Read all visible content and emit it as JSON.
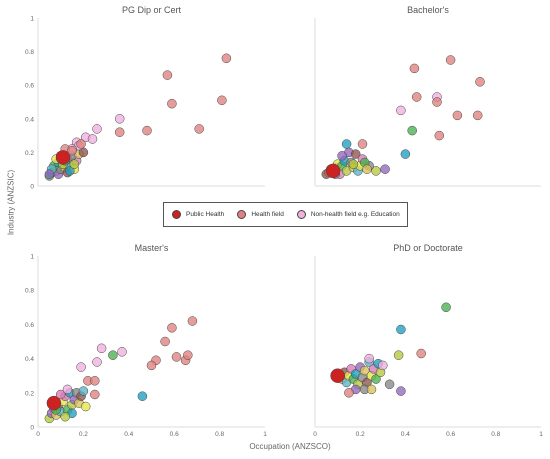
{
  "y_axis_label": "Industry (ANZSIC)",
  "x_axis_label": "Occupation (ANZSCO)",
  "legend": [
    {
      "label": "Public Health",
      "color": "#cc2222"
    },
    {
      "label": "Health field",
      "color": "#e08080"
    },
    {
      "label": "Non-health field e.g. Education",
      "color": "#f0b0e0"
    }
  ],
  "palette": [
    "#4caf50",
    "#1f9fbf",
    "#b5c83a",
    "#9467bd",
    "#888888",
    "#d9c25a",
    "#8c564b",
    "#5ab4c8",
    "#e6e64a",
    "#d87bb8"
  ],
  "chart_data": [
    {
      "type": "scatter",
      "title": "PG Dip or Cert",
      "xlim": [
        0,
        1
      ],
      "ylim": [
        0,
        1
      ],
      "yticks": [
        "0",
        "0.2",
        "0.4",
        "0.6",
        "0.8",
        "1"
      ],
      "xticks": [],
      "series": [
        {
          "name": "Public Health",
          "points": [
            [
              0.11,
              0.17
            ]
          ]
        },
        {
          "name": "Health field",
          "points": [
            [
              0.57,
              0.66
            ],
            [
              0.83,
              0.76
            ],
            [
              0.59,
              0.49
            ],
            [
              0.81,
              0.51
            ],
            [
              0.36,
              0.32
            ],
            [
              0.48,
              0.33
            ],
            [
              0.71,
              0.34
            ],
            [
              0.12,
              0.22
            ],
            [
              0.15,
              0.21
            ],
            [
              0.19,
              0.25
            ]
          ]
        },
        {
          "name": "Non-health field e.g. Education",
          "points": [
            [
              0.36,
              0.4
            ],
            [
              0.26,
              0.34
            ],
            [
              0.21,
              0.29
            ],
            [
              0.24,
              0.28
            ],
            [
              0.17,
              0.26
            ],
            [
              0.18,
              0.24
            ],
            [
              0.15,
              0.22
            ]
          ]
        },
        {
          "name": "",
          "points": [
            [
              0.05,
              0.06
            ],
            [
              0.06,
              0.08
            ],
            [
              0.08,
              0.09
            ],
            [
              0.09,
              0.07
            ],
            [
              0.1,
              0.1
            ],
            [
              0.12,
              0.11
            ],
            [
              0.13,
              0.08
            ],
            [
              0.14,
              0.12
            ],
            [
              0.16,
              0.1
            ],
            [
              0.17,
              0.15
            ],
            [
              0.07,
              0.12
            ],
            [
              0.09,
              0.14
            ],
            [
              0.11,
              0.13
            ],
            [
              0.13,
              0.16
            ],
            [
              0.15,
              0.18
            ],
            [
              0.18,
              0.19
            ],
            [
              0.2,
              0.2
            ],
            [
              0.06,
              0.1
            ],
            [
              0.08,
              0.16
            ],
            [
              0.1,
              0.18
            ],
            [
              0.12,
              0.15
            ],
            [
              0.14,
              0.09
            ],
            [
              0.16,
              0.13
            ],
            [
              0.05,
              0.07
            ]
          ]
        }
      ]
    },
    {
      "type": "scatter",
      "title": "Bachelor's",
      "xlim": [
        0,
        1
      ],
      "ylim": [
        0,
        1
      ],
      "yticks": [],
      "xticks": [],
      "series": [
        {
          "name": "Public Health",
          "points": [
            [
              0.08,
              0.09
            ]
          ]
        },
        {
          "name": "Health field",
          "points": [
            [
              0.44,
              0.7
            ],
            [
              0.6,
              0.75
            ],
            [
              0.54,
              0.5
            ],
            [
              0.73,
              0.62
            ],
            [
              0.45,
              0.53
            ],
            [
              0.63,
              0.42
            ],
            [
              0.72,
              0.42
            ],
            [
              0.55,
              0.3
            ],
            [
              0.21,
              0.25
            ]
          ]
        },
        {
          "name": "Non-health field e.g. Education",
          "points": [
            [
              0.38,
              0.45
            ],
            [
              0.54,
              0.53
            ]
          ]
        },
        {
          "name": "",
          "points": [
            [
              0.43,
              0.33
            ],
            [
              0.4,
              0.19
            ],
            [
              0.27,
              0.09
            ],
            [
              0.31,
              0.1
            ],
            [
              0.24,
              0.12
            ],
            [
              0.06,
              0.08
            ],
            [
              0.07,
              0.1
            ],
            [
              0.09,
              0.11
            ],
            [
              0.1,
              0.13
            ],
            [
              0.11,
              0.07
            ],
            [
              0.12,
              0.12
            ],
            [
              0.13,
              0.15
            ],
            [
              0.14,
              0.09
            ],
            [
              0.15,
              0.2
            ],
            [
              0.16,
              0.14
            ],
            [
              0.17,
              0.11
            ],
            [
              0.18,
              0.19
            ],
            [
              0.19,
              0.09
            ],
            [
              0.2,
              0.12
            ],
            [
              0.21,
              0.16
            ],
            [
              0.22,
              0.14
            ],
            [
              0.14,
              0.25
            ],
            [
              0.17,
              0.13
            ],
            [
              0.12,
              0.18
            ],
            [
              0.09,
              0.07
            ],
            [
              0.23,
              0.1
            ],
            [
              0.05,
              0.07
            ]
          ]
        }
      ]
    },
    {
      "type": "scatter",
      "title": "Master's",
      "xlim": [
        0,
        1
      ],
      "ylim": [
        0,
        1
      ],
      "yticks": [
        "0",
        "0.2",
        "0.4",
        "0.6",
        "0.8",
        "1"
      ],
      "xticks": [
        "0",
        "0.2",
        "0.4",
        "0.6",
        "0.8",
        "1"
      ],
      "series": [
        {
          "name": "Public Health",
          "points": [
            [
              0.07,
              0.14
            ]
          ]
        },
        {
          "name": "Health field",
          "points": [
            [
              0.68,
              0.62
            ],
            [
              0.59,
              0.58
            ],
            [
              0.56,
              0.5
            ],
            [
              0.61,
              0.41
            ],
            [
              0.65,
              0.39
            ],
            [
              0.66,
              0.42
            ],
            [
              0.52,
              0.39
            ],
            [
              0.5,
              0.36
            ],
            [
              0.22,
              0.27
            ],
            [
              0.25,
              0.27
            ],
            [
              0.25,
              0.19
            ]
          ]
        },
        {
          "name": "Non-health field e.g. Education",
          "points": [
            [
              0.28,
              0.46
            ],
            [
              0.37,
              0.44
            ],
            [
              0.26,
              0.38
            ],
            [
              0.19,
              0.35
            ],
            [
              0.13,
              0.22
            ]
          ]
        },
        {
          "name": "",
          "points": [
            [
              0.33,
              0.42
            ],
            [
              0.46,
              0.18
            ],
            [
              0.05,
              0.05
            ],
            [
              0.06,
              0.08
            ],
            [
              0.07,
              0.11
            ],
            [
              0.08,
              0.07
            ],
            [
              0.09,
              0.12
            ],
            [
              0.1,
              0.09
            ],
            [
              0.11,
              0.15
            ],
            [
              0.12,
              0.18
            ],
            [
              0.13,
              0.1
            ],
            [
              0.14,
              0.2
            ],
            [
              0.15,
              0.13
            ],
            [
              0.16,
              0.16
            ],
            [
              0.17,
              0.2
            ],
            [
              0.18,
              0.14
            ],
            [
              0.19,
              0.18
            ],
            [
              0.2,
              0.21
            ],
            [
              0.21,
              0.12
            ],
            [
              0.1,
              0.19
            ],
            [
              0.08,
              0.1
            ],
            [
              0.15,
              0.08
            ],
            [
              0.12,
              0.06
            ]
          ]
        }
      ]
    },
    {
      "type": "scatter",
      "title": "PhD or Doctorate",
      "xlim": [
        0,
        1
      ],
      "ylim": [
        0,
        1
      ],
      "yticks": [],
      "xticks": [
        "0",
        "0.2",
        "0.4",
        "0.6",
        "0.8",
        "1"
      ],
      "series": [
        {
          "name": "Public Health",
          "points": [
            [
              0.1,
              0.3
            ]
          ]
        },
        {
          "name": "Health field",
          "points": [
            [
              0.47,
              0.43
            ],
            [
              0.15,
              0.2
            ]
          ]
        },
        {
          "name": "Non-health field e.g. Education",
          "points": [
            [
              0.24,
              0.4
            ],
            [
              0.3,
              0.36
            ]
          ]
        },
        {
          "name": "",
          "points": [
            [
              0.58,
              0.7
            ],
            [
              0.38,
              0.57
            ],
            [
              0.37,
              0.42
            ],
            [
              0.38,
              0.21
            ],
            [
              0.33,
              0.25
            ],
            [
              0.12,
              0.28
            ],
            [
              0.13,
              0.32
            ],
            [
              0.14,
              0.26
            ],
            [
              0.15,
              0.3
            ],
            [
              0.16,
              0.34
            ],
            [
              0.17,
              0.28
            ],
            [
              0.18,
              0.31
            ],
            [
              0.19,
              0.25
            ],
            [
              0.2,
              0.35
            ],
            [
              0.21,
              0.29
            ],
            [
              0.22,
              0.33
            ],
            [
              0.23,
              0.26
            ],
            [
              0.24,
              0.38
            ],
            [
              0.25,
              0.3
            ],
            [
              0.26,
              0.34
            ],
            [
              0.27,
              0.28
            ],
            [
              0.28,
              0.37
            ],
            [
              0.29,
              0.32
            ],
            [
              0.18,
              0.22
            ],
            [
              0.22,
              0.22
            ],
            [
              0.25,
              0.22
            ]
          ]
        }
      ]
    }
  ]
}
